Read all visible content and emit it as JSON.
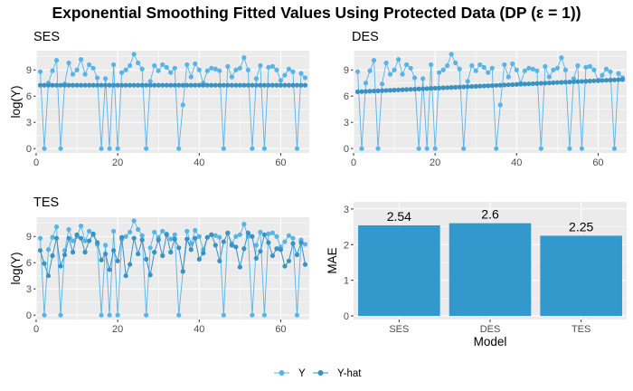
{
  "chart_data": {
    "title": "Exponential Smoothing Fitted Values Using Protected Data (DP (ε = 1))",
    "colors": {
      "y": "#56B4E9",
      "yhat": "#3A92C2",
      "bar": "#3399CC",
      "panel_bg": "#EBEBEB",
      "grid": "#FFFFFF"
    },
    "legend": {
      "position": "bottom",
      "items": [
        "Y",
        "Y-hat"
      ]
    },
    "observed": [
      8.8,
      0,
      7.5,
      8.9,
      10.1,
      0,
      7.4,
      9.8,
      8.5,
      9.0,
      10.2,
      8.5,
      9.6,
      9.2,
      8.1,
      0,
      8.0,
      0,
      9.6,
      0,
      8.7,
      9.0,
      9.5,
      10.8,
      9.8,
      9.1,
      0,
      7.7,
      9.5,
      8.9,
      9.6,
      9.3,
      8.7,
      9.2,
      0,
      5.0,
      9.6,
      8.2,
      9.7,
      9.0,
      7.5,
      8.9,
      9.2,
      9.1,
      8.9,
      0,
      9.4,
      8.2,
      9.0,
      9.2,
      10.4,
      9.0,
      0,
      8.0,
      9.5,
      0,
      9.3,
      9.4,
      9.0,
      7.8,
      8.4,
      9.1,
      8.8,
      0,
      8.6,
      8.1
    ],
    "panels": [
      {
        "name": "SES",
        "type": "line",
        "ylabel": "log(Y)",
        "xlim": [
          0,
          67
        ],
        "ylim": [
          -0.5,
          11.2
        ],
        "xticks": [
          0,
          20,
          40,
          60
        ],
        "yticks": [
          0,
          3,
          6,
          9
        ],
        "fitted_const": 7.25
      },
      {
        "name": "DES",
        "type": "line",
        "ylabel": "",
        "xlim": [
          0,
          67
        ],
        "ylim": [
          -0.5,
          11.2
        ],
        "xticks": [
          0,
          20,
          40,
          60
        ],
        "yticks": [
          0,
          3,
          6,
          9
        ],
        "fitted_linear": [
          6.5,
          7.9
        ]
      },
      {
        "name": "TES",
        "type": "line",
        "ylabel": "log(Y)",
        "xlim": [
          0,
          67
        ],
        "ylim": [
          -0.5,
          11.2
        ],
        "xticks": [
          0,
          20,
          40,
          60
        ],
        "yticks": [
          0,
          3,
          6,
          9
        ],
        "fitted": [
          7.4,
          5.9,
          4.5,
          6.8,
          8.8,
          5.6,
          6.9,
          8.8,
          7.2,
          9.2,
          8.8,
          7.2,
          8.5,
          9.3,
          8.3,
          6.3,
          7.0,
          5.2,
          7.4,
          6.2,
          8.9,
          4.5,
          5.8,
          8.8,
          7.0,
          8.6,
          6.4,
          4.6,
          7.2,
          8.6,
          6.8,
          9.2,
          7.2,
          8.7,
          7.7,
          5.0,
          8.7,
          7.5,
          8.8,
          6.4,
          7.1,
          8.9,
          9.2,
          8.0,
          6.2,
          8.4,
          9.4,
          8.0,
          7.8,
          5.5,
          7.6,
          9.4,
          9.0,
          6.5,
          7.3,
          9.2,
          8.3,
          6.8,
          7.6,
          7.5,
          5.6,
          6.2,
          8.2,
          6.9,
          8.3,
          5.8
        ]
      },
      {
        "name": "",
        "type": "bar",
        "categories": [
          "SES",
          "DES",
          "TES"
        ],
        "values": [
          2.54,
          2.6,
          2.25
        ],
        "labels": [
          "2.54",
          "2.6",
          "2.25"
        ],
        "xlabel": "Model",
        "ylabel": "MAE",
        "ylim": [
          -0.1,
          3.2
        ],
        "yticks": [
          0,
          1,
          2,
          3
        ]
      }
    ]
  }
}
